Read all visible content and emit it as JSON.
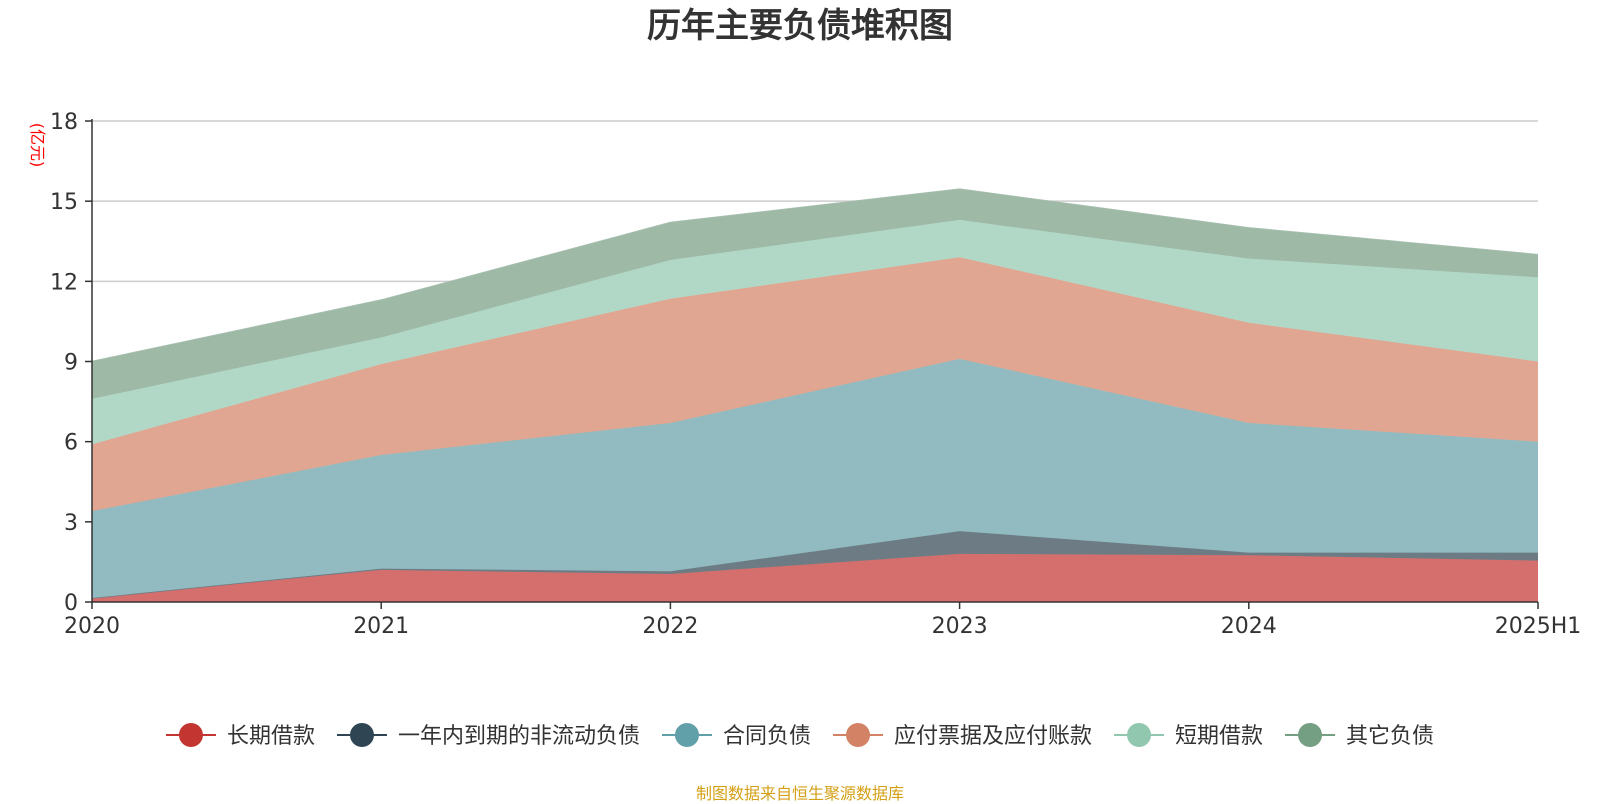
{
  "chart_data": {
    "type": "area",
    "stacked": true,
    "title": "历年主要负债堆积图",
    "unit_label": "(亿元)",
    "categories": [
      "2020",
      "2021",
      "2022",
      "2023",
      "2024",
      "2025H1"
    ],
    "ylim": [
      0,
      18
    ],
    "yticks": [
      "0",
      "3",
      "6",
      "9",
      "12",
      "15",
      "18"
    ],
    "grid": true,
    "legend_position": "bottom",
    "series": [
      {
        "name": "长期借款",
        "color": "#c23531",
        "fill": "#d46f6d",
        "values": [
          0.15,
          1.2,
          1.05,
          1.8,
          1.75,
          1.55
        ]
      },
      {
        "name": "一年内到期的非流动负债",
        "color": "#2f4554",
        "fill": "#6d7c84",
        "values": [
          0.0,
          0.05,
          0.1,
          0.85,
          0.1,
          0.3
        ]
      },
      {
        "name": "合同负债",
        "color": "#61a0a8",
        "fill": "#91bbc1",
        "values": [
          3.25,
          4.25,
          5.55,
          6.45,
          4.85,
          4.15
        ]
      },
      {
        "name": "应付票据及应付账款",
        "color": "#d48265",
        "fill": "#e0a691",
        "values": [
          2.5,
          3.4,
          4.65,
          3.8,
          3.75,
          3.0
        ]
      },
      {
        "name": "短期借款",
        "color": "#91c7ae",
        "fill": "#b1d8c6",
        "values": [
          1.7,
          1.0,
          1.45,
          1.4,
          2.4,
          3.15
        ]
      },
      {
        "name": "其它负债",
        "color": "#749f83",
        "fill": "#9fb9a7",
        "values": [
          1.4,
          1.4,
          1.4,
          1.15,
          1.15,
          0.85
        ]
      }
    ]
  },
  "footer": {
    "source": "制图数据来自恒生聚源数据库"
  }
}
